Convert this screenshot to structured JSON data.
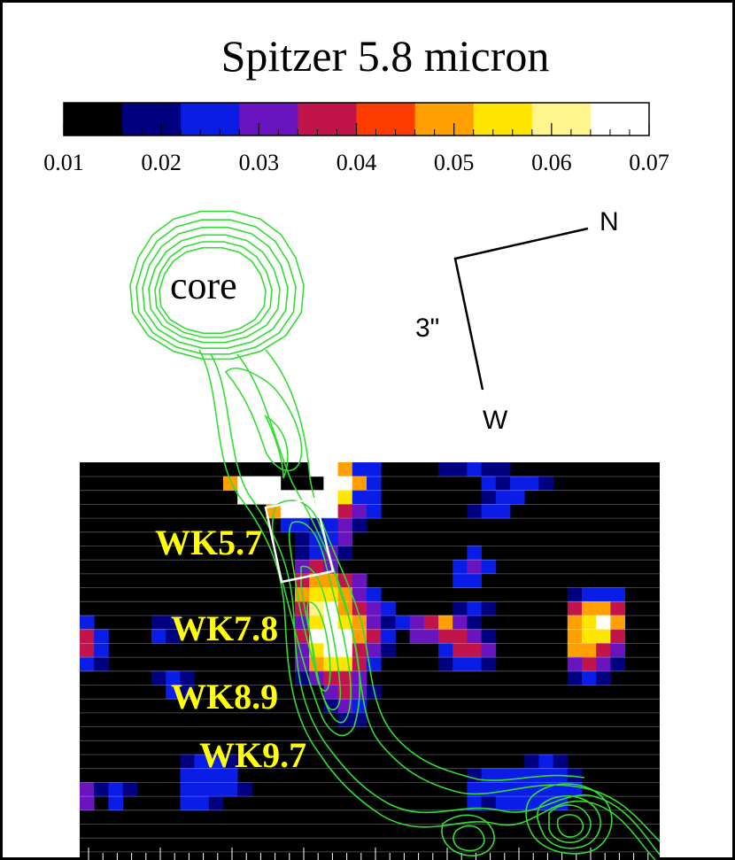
{
  "figure": {
    "title": "Spitzer 5.8 micron",
    "colorbar": {
      "tick_labels": [
        "0.01",
        "0.02",
        "0.03",
        "0.04",
        "0.05",
        "0.06",
        "0.07"
      ],
      "colors": [
        "#000000",
        "#000080",
        "#0a1de6",
        "#6a14c0",
        "#c0144a",
        "#ff3c00",
        "#ffa000",
        "#ffe600",
        "#fff58c",
        "#ffffff"
      ]
    },
    "compass": {
      "north_label": "N",
      "west_label": "W",
      "scale_label": "3\""
    },
    "core_label": "core",
    "knot_labels": [
      "WK5.7",
      "WK7.8",
      "WK8.9",
      "WK9.7"
    ],
    "contour_color": "#33dd33",
    "label_color": "#ffff00"
  }
}
